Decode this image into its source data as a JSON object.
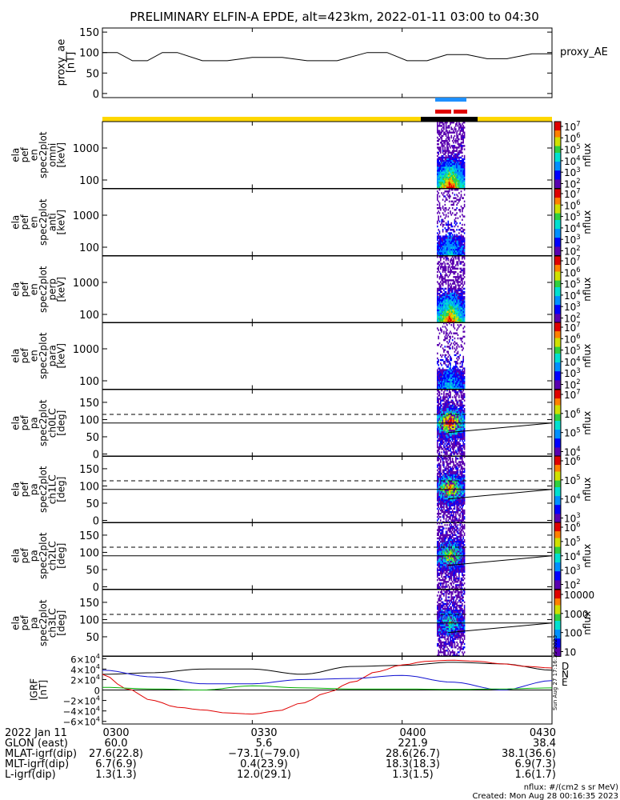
{
  "chart_data": {
    "type": "spectrogram-stack",
    "title": "PRELIMINARY ELFIN-A EPDE, alt=423km, 2022-01-11 03:00 to 04:30",
    "colors": {
      "axis": "#000000",
      "bar_yellow": "#ffd700",
      "bar_black": "#000000",
      "bar_blue": "#1e90ff",
      "bar_red": "#e00000"
    },
    "proxy_ae": {
      "ylabel": "proxy_ae\n[nT]",
      "series_label": "proxy_AE",
      "yticks": [
        "150",
        "100",
        "50",
        "0"
      ],
      "ylim": [
        -10,
        160
      ],
      "x_min": [
        0,
        3,
        6,
        9,
        12,
        15,
        20,
        25,
        30,
        36,
        41,
        47,
        53,
        57,
        61,
        65,
        69,
        73,
        77,
        81,
        86,
        90
      ],
      "values": [
        100,
        100,
        80,
        80,
        100,
        100,
        80,
        80,
        88,
        88,
        80,
        80,
        100,
        100,
        80,
        80,
        95,
        95,
        85,
        85,
        97,
        97
      ]
    },
    "panels": [
      {
        "id": "omni",
        "ylabel": "ela\npef\nen\nspec2plot\nomni\n[keV]",
        "kind": "energy",
        "yticks": [
          "1000",
          "100"
        ],
        "cb_ticks": [
          "10^7",
          "10^6",
          "10^5",
          "10^4",
          "10^3",
          "10^2"
        ],
        "cb_label": "nflux",
        "intensity": 1.0
      },
      {
        "id": "anti",
        "ylabel": "ela\npef\nen\nspec2plot\nanti\n[keV]",
        "kind": "energy",
        "yticks": [
          "1000",
          "100"
        ],
        "cb_ticks": [
          "10^7",
          "10^6",
          "10^5",
          "10^4",
          "10^3",
          "10^2"
        ],
        "cb_label": "nflux",
        "intensity": 0.45
      },
      {
        "id": "perp",
        "ylabel": "ela\npef\nen\nspec2plot\nperp\n[keV]",
        "kind": "energy",
        "yticks": [
          "1000",
          "100"
        ],
        "cb_ticks": [
          "10^7",
          "10^6",
          "10^5",
          "10^4",
          "10^3",
          "10^2"
        ],
        "cb_label": "nflux",
        "intensity": 1.0
      },
      {
        "id": "para",
        "ylabel": "ela\npef\nen\nspec2plot\npara\n[keV]",
        "kind": "energy",
        "yticks": [
          "1000",
          "100"
        ],
        "cb_ticks": [
          "10^7",
          "10^6",
          "10^5",
          "10^4",
          "10^3",
          "10^2"
        ],
        "cb_label": "nflux",
        "intensity": 0.45
      },
      {
        "id": "ch0LC",
        "ylabel": "ela\npef\npa\nspec2plot\nch0LC\n[deg]",
        "kind": "pa",
        "yticks": [
          "150",
          "100",
          "50",
          "0"
        ],
        "cb_ticks": [
          "10^7",
          "10^6",
          "10^5",
          "10^4"
        ],
        "cb_label": "nflux",
        "intensity": 1.0
      },
      {
        "id": "ch1LC",
        "ylabel": "ela\npef\npa\nspec2plot\nch1LC\n[deg]",
        "kind": "pa",
        "yticks": [
          "150",
          "100",
          "50",
          "0"
        ],
        "cb_ticks": [
          "10^6",
          "10^5",
          "10^4",
          "10^3"
        ],
        "cb_label": "nflux",
        "intensity": 0.85
      },
      {
        "id": "ch2LC",
        "ylabel": "ela\npef\npa\nspec2plot\nch2LC\n[deg]",
        "kind": "pa",
        "yticks": [
          "150",
          "100",
          "50",
          "0"
        ],
        "cb_ticks": [
          "10^6",
          "10^5",
          "10^4",
          "10^3",
          "10^2"
        ],
        "cb_label": "nflux",
        "intensity": 0.7
      },
      {
        "id": "ch3LC",
        "ylabel": "ela\npef\npa\nspec2plot\nch3LC\n[deg]",
        "kind": "pa",
        "yticks": [
          "150",
          "100",
          "50"
        ],
        "cb_ticks": [
          "10000",
          "1000",
          "100",
          "10"
        ],
        "cb_label": "nflux",
        "intensity": 0.55
      }
    ],
    "pa_reference_lines": {
      "dashed_deg": 115,
      "solid_deg": 90,
      "losscone_start_deg": 62,
      "losscone_end_deg": 90
    },
    "igrf": {
      "ylabel": "IGRF\n[nT]",
      "yticks": [
        "6×10^4",
        "4×10^4",
        "2×10^4",
        "0",
        "−2×10^4",
        "−4×10^4",
        "−6×10^4"
      ],
      "ylim": [
        -65000,
        65000
      ],
      "legend": [
        "D",
        "N",
        "E"
      ],
      "legend_colors": [
        "#e00000",
        "#1010d0",
        "#00b000"
      ],
      "series": [
        {
          "name": "black",
          "color": "#000000",
          "x_min": [
            0,
            10,
            20,
            30,
            40,
            50,
            60,
            70,
            80,
            90
          ],
          "values": [
            30000,
            33000,
            40000,
            40000,
            30000,
            45000,
            47000,
            53000,
            50000,
            38000
          ]
        },
        {
          "name": "D",
          "color": "#e00000",
          "x_min": [
            0,
            5,
            10,
            15,
            20,
            25,
            30,
            35,
            40,
            45,
            50,
            55,
            60,
            65,
            70,
            75,
            80,
            85,
            90
          ],
          "values": [
            30000,
            2000,
            -20000,
            -33000,
            -38000,
            -44000,
            -46000,
            -40000,
            -25000,
            -5000,
            15000,
            35000,
            48000,
            55000,
            57000,
            55000,
            50000,
            45000,
            42000
          ]
        },
        {
          "name": "N",
          "color": "#1010d0",
          "x_min": [
            0,
            10,
            20,
            30,
            40,
            50,
            60,
            70,
            80,
            90
          ],
          "values": [
            38000,
            25000,
            12000,
            12000,
            20000,
            22000,
            28000,
            15000,
            0,
            18000
          ]
        },
        {
          "name": "E",
          "color": "#00b000",
          "x_min": [
            0,
            10,
            20,
            30,
            40,
            50,
            60,
            70,
            80,
            90
          ],
          "values": [
            5000,
            2000,
            0,
            8000,
            4000,
            2000,
            2000,
            1000,
            2000,
            4000
          ]
        }
      ]
    },
    "side_stamp": "Sun Aug 27 17:16:35 2023",
    "x_ticks_min": [
      0,
      30,
      60,
      90
    ],
    "bottom_table": {
      "row_labels": [
        "2022 Jan 11",
        "GLON (east)",
        "MLAT-igrf(dip)",
        "MLT-igrf(dip)",
        "L-igrf(dip)"
      ],
      "columns": [
        [
          "0300",
          "60.0",
          "27.6(22.8)",
          "6.7(6.9)",
          "1.3(1.3)"
        ],
        [
          "0330",
          "5.6",
          "−73.1(−79.0)",
          "0.4(23.9)",
          "12.0(29.1)"
        ],
        [
          "0400",
          "221.9",
          "28.6(26.7)",
          "18.3(18.3)",
          "1.3(1.5)"
        ],
        [
          "0430",
          "38.4",
          "38.1(36.6)",
          "6.9(7.3)",
          "1.6(1.7)"
        ]
      ]
    },
    "footer": {
      "units": "nflux: #/(cm^2 s sr MeV)",
      "created": "Created: Mon Aug 28 00:16:35 2023"
    }
  }
}
